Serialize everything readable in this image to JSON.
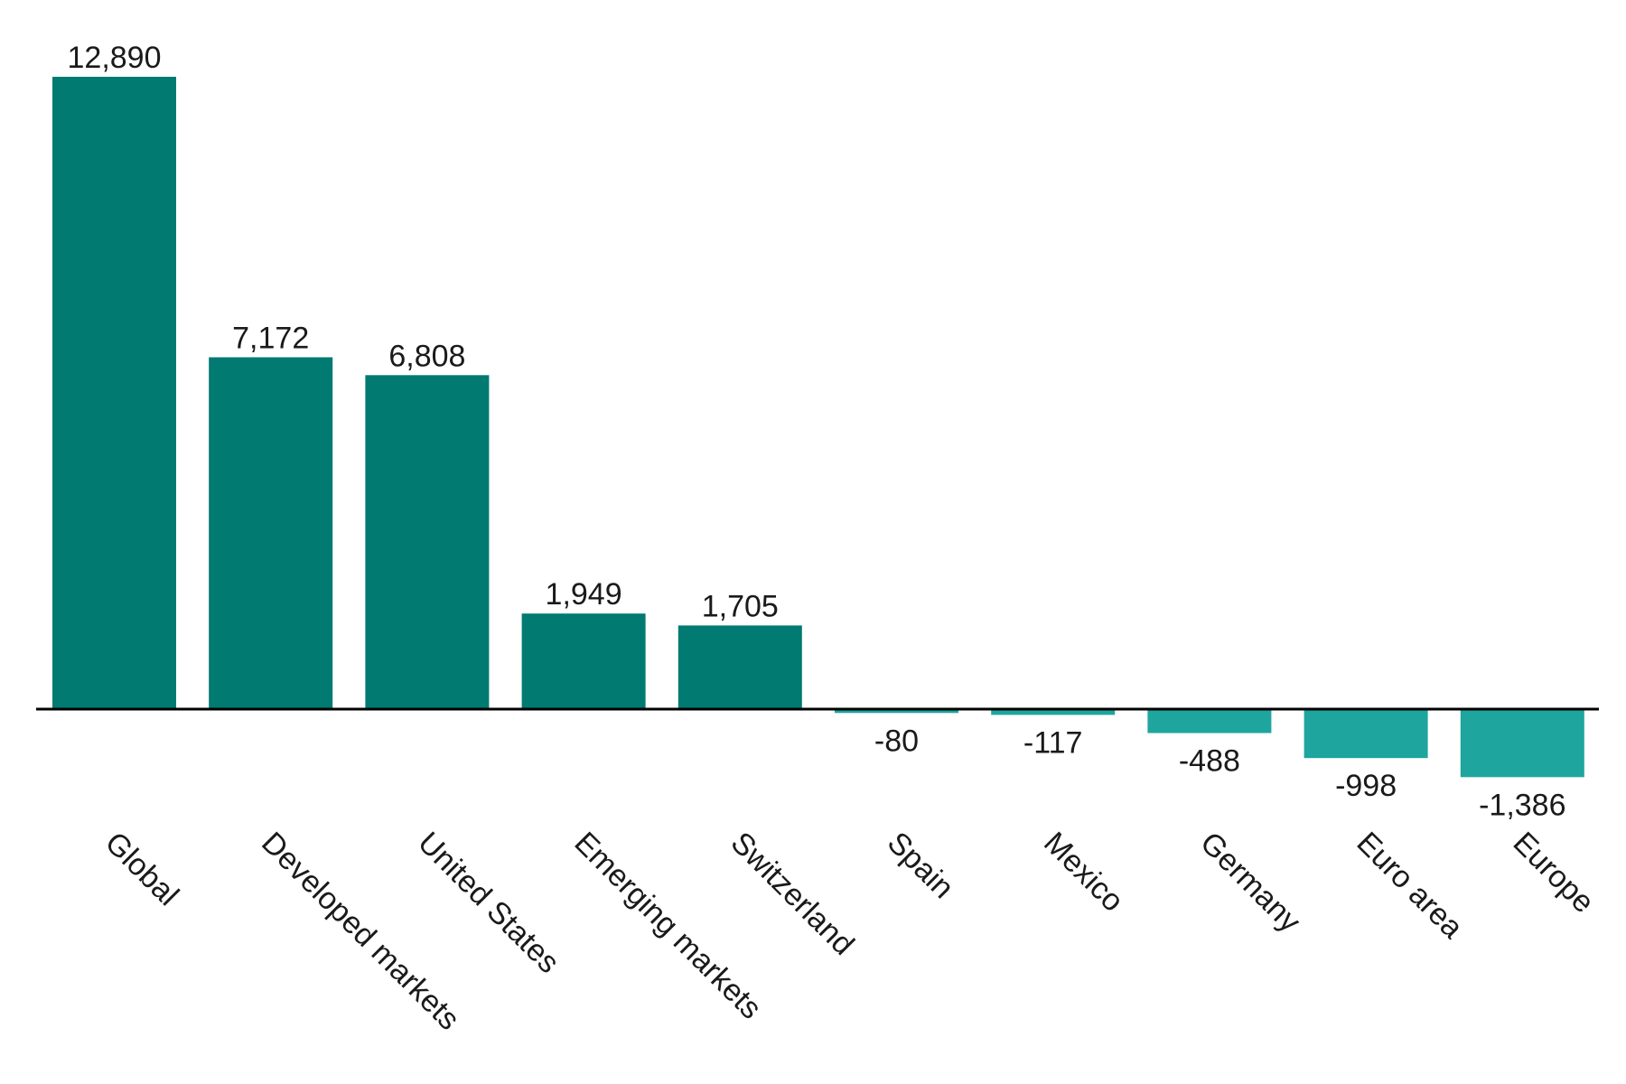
{
  "chart_data": {
    "type": "bar",
    "title": "",
    "xlabel": "",
    "ylabel": "",
    "categories": [
      "Global",
      "Developed markets",
      "United States",
      "Emerging markets",
      "Switzerland",
      "Spain",
      "Mexico",
      "Germany",
      "Euro area",
      "Europe"
    ],
    "values": [
      12890,
      7172,
      6808,
      1949,
      1705,
      -80,
      -117,
      -488,
      -998,
      -1386
    ],
    "value_labels": [
      "12,890",
      "7,172",
      "6,808",
      "1,949",
      "1,705",
      "-80",
      "-117",
      "-488",
      "-998",
      "-1,386"
    ],
    "ylim": [
      -1386,
      12890
    ],
    "grid": false,
    "legend": "none",
    "colors": {
      "positive": "#017a72",
      "negative": "#1ea59e",
      "axis": "#000000",
      "text": "#1a1a1a"
    }
  }
}
